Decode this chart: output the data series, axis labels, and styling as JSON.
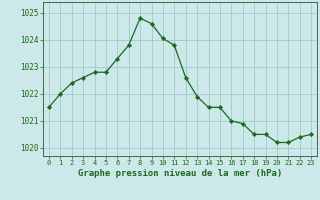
{
  "x": [
    0,
    1,
    2,
    3,
    4,
    5,
    6,
    7,
    8,
    9,
    10,
    11,
    12,
    13,
    14,
    15,
    16,
    17,
    18,
    19,
    20,
    21,
    22,
    23
  ],
  "y": [
    1021.5,
    1022.0,
    1022.4,
    1022.6,
    1022.8,
    1022.8,
    1023.3,
    1023.8,
    1024.8,
    1024.6,
    1024.05,
    1023.8,
    1022.6,
    1021.9,
    1021.5,
    1021.5,
    1021.0,
    1020.9,
    1020.5,
    1020.5,
    1020.2,
    1020.2,
    1020.4,
    1020.5
  ],
  "xlabel": "Graphe pression niveau de la mer (hPa)",
  "ylim": [
    1019.7,
    1025.4
  ],
  "yticks": [
    1020,
    1021,
    1022,
    1023,
    1024,
    1025
  ],
  "xticks": [
    0,
    1,
    2,
    3,
    4,
    5,
    6,
    7,
    8,
    9,
    10,
    11,
    12,
    13,
    14,
    15,
    16,
    17,
    18,
    19,
    20,
    21,
    22,
    23
  ],
  "line_color": "#1a6b1a",
  "marker_color": "#1a6b1a",
  "bg_color": "#cce8e8",
  "grid_color": "#99cccc",
  "xlabel_fontsize": 6.5,
  "xtick_fontsize": 5.0,
  "ytick_fontsize": 5.5
}
